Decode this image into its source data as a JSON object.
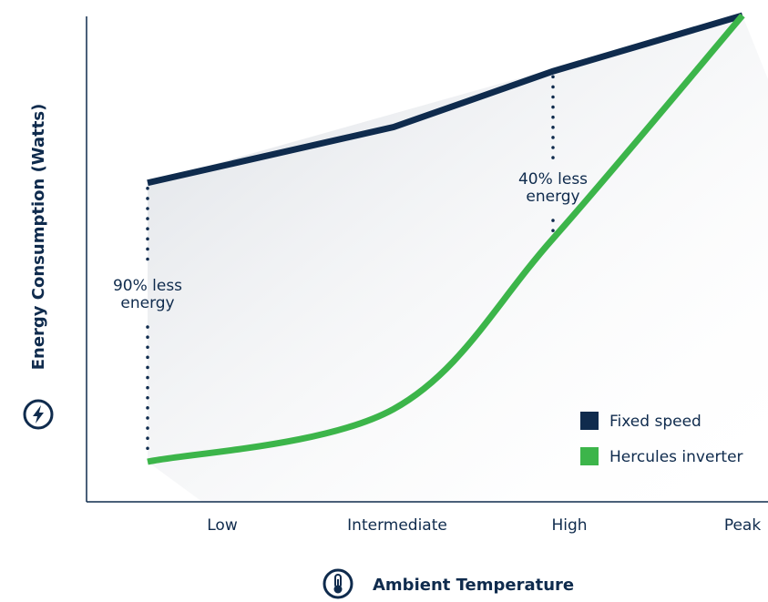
{
  "chart_data": {
    "type": "line",
    "categories": [
      "Low",
      "Intermediate",
      "High",
      "Peak"
    ],
    "series": [
      {
        "name": "Fixed speed",
        "color": "#0f2b4d",
        "shape": "linear",
        "values": [
          100,
          118,
          136,
          154
        ]
      },
      {
        "name": "Hercules inverter",
        "color": "#3cb54a",
        "shape": "curve",
        "values": [
          10,
          27,
          82,
          154
        ]
      }
    ],
    "xlabel": "Ambient Temperature",
    "ylabel": "Energy Consumption (Watts)",
    "y_ticks_shown": false,
    "annotations": [
      {
        "category": "Low",
        "lines": [
          "90% less",
          "energy"
        ]
      },
      {
        "category": "High",
        "lines": [
          "40% less",
          "energy"
        ]
      }
    ],
    "legend_position": "bottom-right",
    "icons": {
      "ylabel_icon": "lightning-bolt-icon",
      "xlabel_icon": "thermometer-icon"
    }
  }
}
